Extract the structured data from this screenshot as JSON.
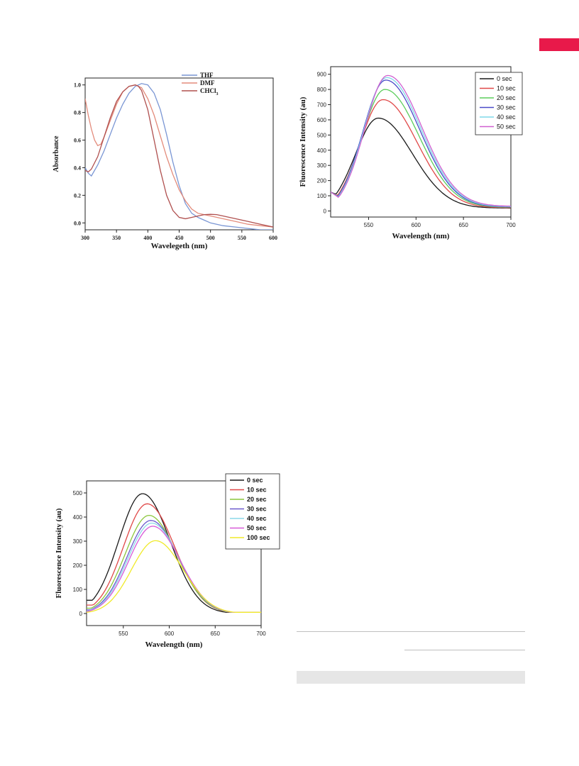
{
  "page": {
    "accent_color": "#e8194a"
  },
  "chart_data": [
    {
      "type": "line",
      "ylabel": "Absorbance",
      "xlabel": "Wavelegeth (nm)",
      "xlim": [
        300,
        600
      ],
      "ylim": [
        -0.05,
        1.05
      ],
      "xticks": [
        300,
        350,
        400,
        450,
        500,
        550,
        600
      ],
      "yticks": [
        0.0,
        0.2,
        0.4,
        0.6,
        0.8,
        1.0
      ],
      "grid": false,
      "legend_position": "top-right",
      "series": [
        {
          "name": "THF",
          "color": "#7a96d4",
          "x": [
            300,
            305,
            310,
            320,
            330,
            340,
            350,
            360,
            370,
            380,
            390,
            400,
            410,
            420,
            430,
            440,
            450,
            460,
            470,
            480,
            490,
            500,
            520,
            540,
            560,
            580,
            600
          ],
          "y": [
            0.4,
            0.36,
            0.34,
            0.42,
            0.52,
            0.64,
            0.76,
            0.86,
            0.94,
            0.99,
            1.01,
            1.0,
            0.94,
            0.82,
            0.64,
            0.44,
            0.27,
            0.14,
            0.07,
            0.04,
            0.02,
            0.0,
            -0.02,
            -0.03,
            -0.04,
            -0.05,
            -0.05
          ]
        },
        {
          "name": "DMF",
          "color": "#e38b7b",
          "x": [
            300,
            305,
            310,
            315,
            320,
            325,
            330,
            340,
            350,
            360,
            370,
            380,
            390,
            400,
            410,
            420,
            430,
            440,
            450,
            460,
            470,
            480,
            490,
            500,
            520,
            540,
            560,
            580,
            600
          ],
          "y": [
            0.9,
            0.78,
            0.68,
            0.6,
            0.56,
            0.57,
            0.62,
            0.74,
            0.86,
            0.95,
            0.99,
            1.0,
            0.98,
            0.9,
            0.78,
            0.63,
            0.48,
            0.35,
            0.24,
            0.16,
            0.1,
            0.07,
            0.06,
            0.05,
            0.03,
            0.01,
            -0.01,
            -0.02,
            -0.03
          ]
        },
        {
          "name": "CHCl3",
          "color": "#b0504f",
          "x": [
            300,
            305,
            310,
            320,
            330,
            340,
            350,
            360,
            370,
            380,
            385,
            390,
            400,
            410,
            420,
            430,
            440,
            450,
            460,
            470,
            480,
            490,
            500,
            510,
            520,
            540,
            560,
            580,
            600
          ],
          "y": [
            0.38,
            0.37,
            0.39,
            0.48,
            0.62,
            0.76,
            0.88,
            0.95,
            0.99,
            1.0,
            0.99,
            0.96,
            0.82,
            0.6,
            0.38,
            0.2,
            0.09,
            0.04,
            0.03,
            0.04,
            0.05,
            0.06,
            0.062,
            0.06,
            0.05,
            0.03,
            0.01,
            -0.01,
            -0.03
          ]
        }
      ]
    },
    {
      "type": "line",
      "ylabel": "Fluorescence Intensity (au)",
      "xlabel": "Wavelength (nm)",
      "xlim": [
        510,
        700
      ],
      "ylim": [
        -40,
        950
      ],
      "xticks": [
        550,
        600,
        650,
        700
      ],
      "yticks": [
        0,
        100,
        200,
        300,
        400,
        500,
        600,
        700,
        800,
        900
      ],
      "grid": false,
      "legend_position": "top-right",
      "series": [
        {
          "name": "0 sec",
          "color": "#1a1a1a",
          "peak_x": 560,
          "peak_y": 600,
          "tail": 20
        },
        {
          "name": "10 sec",
          "color": "#e04848",
          "peak_x": 565,
          "peak_y": 720,
          "tail": 22
        },
        {
          "name": "20 sec",
          "color": "#5ccd5c",
          "peak_x": 567,
          "peak_y": 785,
          "tail": 25
        },
        {
          "name": "30 sec",
          "color": "#4a4ac8",
          "peak_x": 568,
          "peak_y": 845,
          "tail": 27
        },
        {
          "name": "40 sec",
          "color": "#7fd8e8",
          "peak_x": 569,
          "peak_y": 860,
          "tail": 29
        },
        {
          "name": "50 sec",
          "color": "#d060d0",
          "peak_x": 570,
          "peak_y": 872,
          "tail": 32
        }
      ],
      "start_y": 125
    },
    {
      "type": "line",
      "ylabel": "Fluorescence Intensity (au)",
      "xlabel": "Wavelength (nm)",
      "xlim": [
        510,
        700
      ],
      "ylim": [
        -50,
        550
      ],
      "xticks": [
        550,
        600,
        650,
        700
      ],
      "yticks": [
        0,
        100,
        200,
        300,
        400,
        500
      ],
      "grid": false,
      "legend_position": "top-right",
      "series": [
        {
          "name": "0 sec",
          "color": "#1a1a1a",
          "peak_x": 571,
          "peak_y": 497,
          "start": 55
        },
        {
          "name": "10 sec",
          "color": "#e04848",
          "peak_x": 576,
          "peak_y": 455,
          "start": 35
        },
        {
          "name": "20 sec",
          "color": "#8cc63c",
          "peak_x": 578,
          "peak_y": 407,
          "start": 22
        },
        {
          "name": "30 sec",
          "color": "#6a5acd",
          "peak_x": 580,
          "peak_y": 386,
          "start": 15
        },
        {
          "name": "40 sec",
          "color": "#8cd8e8",
          "peak_x": 581,
          "peak_y": 375,
          "start": 10
        },
        {
          "name": "50 sec",
          "color": "#d85ad8",
          "peak_x": 582,
          "peak_y": 362,
          "start": 7
        },
        {
          "name": "100 sec",
          "color": "#f0ea2a",
          "peak_x": 585,
          "peak_y": 302,
          "start": 3
        }
      ]
    }
  ]
}
